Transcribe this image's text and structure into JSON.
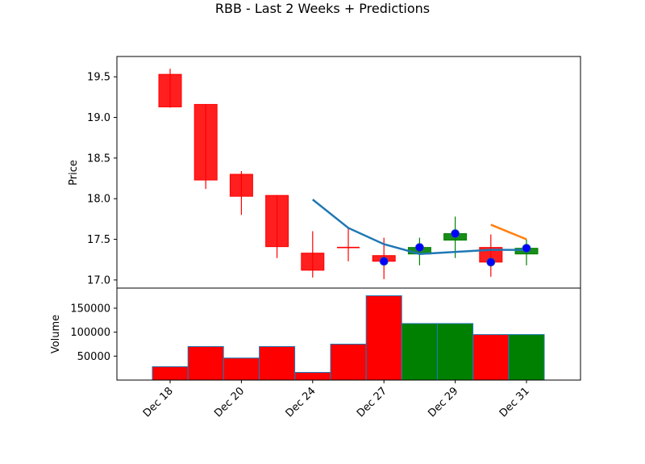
{
  "chart_data": {
    "type": "candlestick",
    "title": "RBB - Last 2 Weeks + Predictions",
    "x_tick_labels": [
      "Dec 18",
      "Dec 20",
      "Dec 24",
      "Dec 27",
      "Dec 29",
      "Dec 31"
    ],
    "x_tick_sessions": [
      0,
      2,
      4,
      6,
      8,
      10
    ],
    "price_panel": {
      "ylabel": "Price",
      "ylim": [
        16.9,
        19.75
      ],
      "yticks": [
        17.0,
        17.5,
        18.0,
        18.5,
        19.0,
        19.5
      ],
      "candles": [
        {
          "open": 19.53,
          "close": 19.13,
          "high": 19.6,
          "low": 19.12
        },
        {
          "open": 19.16,
          "close": 18.23,
          "high": 19.16,
          "low": 18.12
        },
        {
          "open": 18.3,
          "close": 18.03,
          "high": 18.34,
          "low": 17.8
        },
        {
          "open": 18.04,
          "close": 17.41,
          "high": 18.04,
          "low": 17.27
        },
        {
          "open": 17.33,
          "close": 17.12,
          "high": 17.6,
          "low": 17.03
        },
        {
          "open": 17.4,
          "close": 17.4,
          "high": 17.63,
          "low": 17.23
        },
        {
          "open": 17.3,
          "close": 17.23,
          "high": 17.52,
          "low": 17.01
        },
        {
          "open": 17.32,
          "close": 17.4,
          "high": 17.52,
          "low": 17.18
        },
        {
          "open": 17.49,
          "close": 17.57,
          "high": 17.78,
          "low": 17.27
        },
        {
          "open": 17.4,
          "close": 17.22,
          "high": 17.56,
          "low": 17.04
        },
        {
          "open": 17.32,
          "close": 17.39,
          "high": 17.5,
          "low": 17.18
        }
      ],
      "series": [
        {
          "x": [
            4,
            5,
            6,
            7,
            9,
            10
          ],
          "y": [
            17.99,
            17.64,
            17.44,
            17.32,
            17.37,
            17.37
          ]
        },
        {
          "x": [
            9,
            10
          ],
          "y": [
            17.68,
            17.5
          ]
        }
      ],
      "markers": {
        "x": [
          6,
          7,
          8,
          9,
          10
        ],
        "y": [
          17.23,
          17.4,
          17.57,
          17.22,
          17.39
        ]
      }
    },
    "volume_panel": {
      "ylabel": "Volume",
      "ylim": [
        0,
        192000
      ],
      "yticks": [
        50000,
        100000,
        150000
      ],
      "ytick_labels": [
        "50000",
        "100000",
        "150000"
      ],
      "values": [
        28000,
        70000,
        46000,
        70000,
        16000,
        75000,
        176000,
        118000,
        118000,
        95000,
        95000
      ]
    },
    "colors": {
      "up": "#008000",
      "down": "#ff0000",
      "line_1": "#1f77b4",
      "line_2": "#ff7f0e",
      "marker": "#0000ff",
      "volume_edge": "#1f77b4"
    }
  }
}
